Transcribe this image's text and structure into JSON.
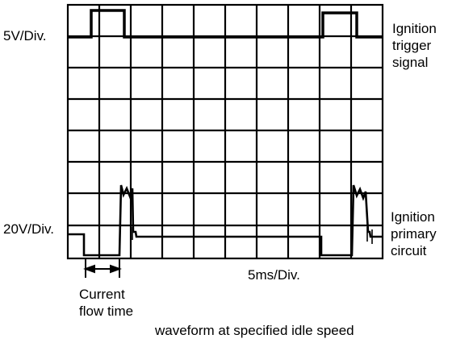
{
  "labels": {
    "trigger_scale": "5V/Div.",
    "primary_scale": "20V/Div.",
    "ignition_trigger": [
      "Ignition",
      "trigger",
      "signal"
    ],
    "ignition_primary": [
      "Ignition",
      "primary",
      "circuit"
    ],
    "time_scale": "5ms/Div.",
    "current_flow": [
      "Current",
      "flow time"
    ],
    "caption": "waveform at specified idle speed"
  },
  "colors": {
    "ink": "#000000",
    "background": "#ffffff"
  },
  "icons": {
    "duration_marker": "double-arrow-icon"
  }
}
